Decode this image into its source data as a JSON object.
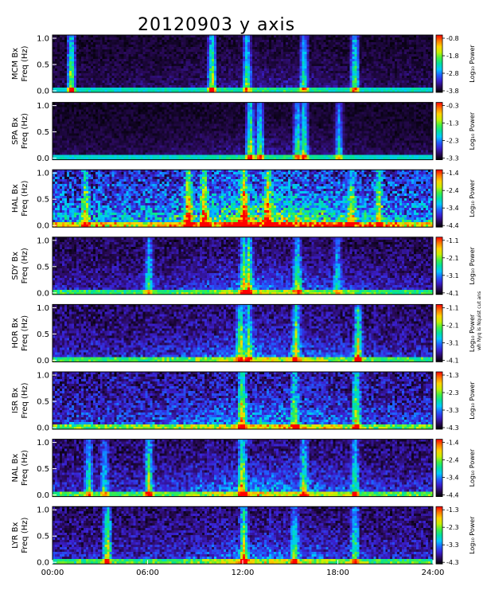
{
  "chart_data": {
    "type": "heatmap",
    "title": "20120903 y axis",
    "x_ticks": [
      "00:00",
      "06:00",
      "12:00",
      "18:00",
      "24:00"
    ],
    "x_range_hours": [
      0,
      24
    ],
    "y_range": [
      0,
      1
    ],
    "y_ticks": [
      "0.0",
      "0.5",
      "1.0"
    ],
    "ylabel_line2": "Freq (Hz)",
    "colorbar_label": "Log₁₀ Power",
    "colormap": [
      "#000000",
      "#2a0a5a",
      "#3a1fcf",
      "#1f5fff",
      "#00c8ff",
      "#00e0a0",
      "#40f040",
      "#c8f000",
      "#ffd200",
      "#ff7800",
      "#ff0000"
    ],
    "side_note": "wh Nyq is Nquist cut ans",
    "panels": [
      {
        "station": "MCM Bx",
        "cbar_ticks": [
          "-0.8",
          "-1.8",
          "-2.8",
          "-3.8"
        ],
        "activity": 0.15,
        "noise": 0.15,
        "bursts": [
          [
            1.1,
            1.0
          ],
          [
            10.0,
            1.0
          ],
          [
            12.2,
            0.8
          ],
          [
            15.8,
            0.7
          ],
          [
            19.0,
            0.9
          ]
        ]
      },
      {
        "station": "SPA Bx",
        "cbar_ticks": [
          "-0.3",
          "-1.3",
          "-2.3",
          "-3.3"
        ],
        "activity": 0.15,
        "noise": 0.12,
        "bursts": [
          [
            12.4,
            1.0
          ],
          [
            13.0,
            0.8
          ],
          [
            15.4,
            0.8
          ],
          [
            15.8,
            0.9
          ],
          [
            18.0,
            0.6
          ]
        ]
      },
      {
        "station": "HAL Bx",
        "cbar_ticks": [
          "-1.4",
          "-2.4",
          "-3.4",
          "-4.4"
        ],
        "activity": 0.65,
        "noise": 0.55,
        "bursts": [
          [
            2.0,
            0.7
          ],
          [
            8.5,
            1.0
          ],
          [
            9.5,
            0.9
          ],
          [
            12.0,
            1.0
          ],
          [
            13.5,
            0.8
          ],
          [
            18.8,
            0.7
          ],
          [
            20.5,
            0.7
          ]
        ]
      },
      {
        "station": "SDY Bx",
        "cbar_ticks": [
          "-1.1",
          "-2.1",
          "-3.1",
          "-4.1"
        ],
        "activity": 0.3,
        "noise": 0.25,
        "bursts": [
          [
            6.0,
            0.6
          ],
          [
            12.0,
            0.8
          ],
          [
            12.3,
            0.9
          ],
          [
            15.4,
            0.7
          ],
          [
            17.9,
            0.5
          ]
        ]
      },
      {
        "station": "HOR Bx",
        "cbar_ticks": [
          "-1.1",
          "-2.1",
          "-3.1",
          "-4.1"
        ],
        "activity": 0.3,
        "noise": 0.3,
        "bursts": [
          [
            11.8,
            0.9
          ],
          [
            12.3,
            0.7
          ],
          [
            15.3,
            0.8
          ],
          [
            19.2,
            0.9
          ]
        ]
      },
      {
        "station": "ISR Bx",
        "cbar_ticks": [
          "-1.3",
          "-2.3",
          "-3.3",
          "-4.3"
        ],
        "activity": 0.35,
        "noise": 0.4,
        "bursts": [
          [
            11.9,
            0.9
          ],
          [
            15.2,
            0.6
          ],
          [
            19.1,
            0.8
          ]
        ]
      },
      {
        "station": "NAL Bx",
        "cbar_ticks": [
          "-1.4",
          "-2.4",
          "-3.4",
          "-4.4"
        ],
        "activity": 0.35,
        "noise": 0.3,
        "bursts": [
          [
            2.2,
            0.6
          ],
          [
            3.2,
            0.5
          ],
          [
            6.0,
            0.8
          ],
          [
            11.9,
            0.9
          ],
          [
            15.8,
            0.6
          ],
          [
            19.0,
            0.6
          ]
        ]
      },
      {
        "station": "LYR Bx",
        "cbar_ticks": [
          "-1.3",
          "-2.3",
          "-3.3",
          "-4.3"
        ],
        "activity": 0.3,
        "noise": 0.3,
        "bursts": [
          [
            3.4,
            1.0
          ],
          [
            12.0,
            0.9
          ],
          [
            15.2,
            0.6
          ],
          [
            19.0,
            0.7
          ]
        ]
      }
    ]
  }
}
